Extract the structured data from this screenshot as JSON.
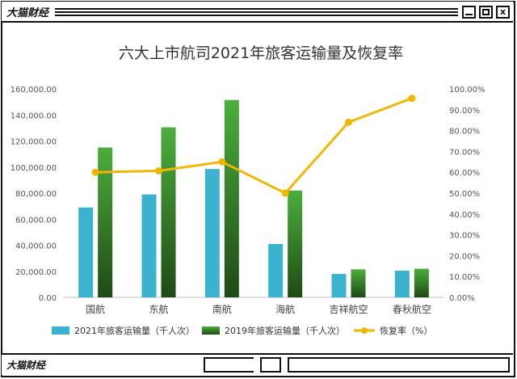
{
  "window": {
    "title": "大猫财经",
    "footer_title": "大猫财经",
    "buttons": {
      "min": "",
      "max": "",
      "close": "x"
    }
  },
  "colors": {
    "bar2021": "#3bb3cf",
    "bar2019_top": "#49a93a",
    "bar2019_bottom": "#1e4a16",
    "line": "#f2b705",
    "axis_text": "#555555",
    "title": "#333333"
  },
  "chart_data": {
    "type": "bar",
    "title": "六大上市航司2021年旅客运输量及恢复率",
    "categories": [
      "国航",
      "东航",
      "南航",
      "海航",
      "吉祥航空",
      "春秋航空"
    ],
    "series": [
      {
        "name": "2021年旅客运输量（千人次）",
        "type": "bar",
        "axis": "left",
        "values": [
          69000,
          79000,
          98500,
          41000,
          18000,
          20500
        ]
      },
      {
        "name": "2019年旅客运输量（千人次）",
        "type": "bar",
        "axis": "left",
        "values": [
          115000,
          130500,
          151500,
          82000,
          21500,
          22000
        ]
      },
      {
        "name": "恢复率（%）",
        "type": "line",
        "axis": "right",
        "values": [
          60.0,
          60.7,
          65.0,
          50.0,
          84.0,
          95.5
        ]
      }
    ],
    "y_left": {
      "range": [
        0,
        160000
      ],
      "ticks": [
        "0.00",
        "20,000.00",
        "40,000.00",
        "60,000.00",
        "80,000.00",
        "100,000.00",
        "120,000.00",
        "140,000.00",
        "160,000.00"
      ]
    },
    "y_right": {
      "range": [
        0,
        100
      ],
      "ticks": [
        "0.00%",
        "10.00%",
        "20.00%",
        "30.00%",
        "40.00%",
        "50.00%",
        "60.00%",
        "70.00%",
        "80.00%",
        "90.00%",
        "100.00%"
      ]
    },
    "grid": false,
    "legend_position": "bottom"
  }
}
